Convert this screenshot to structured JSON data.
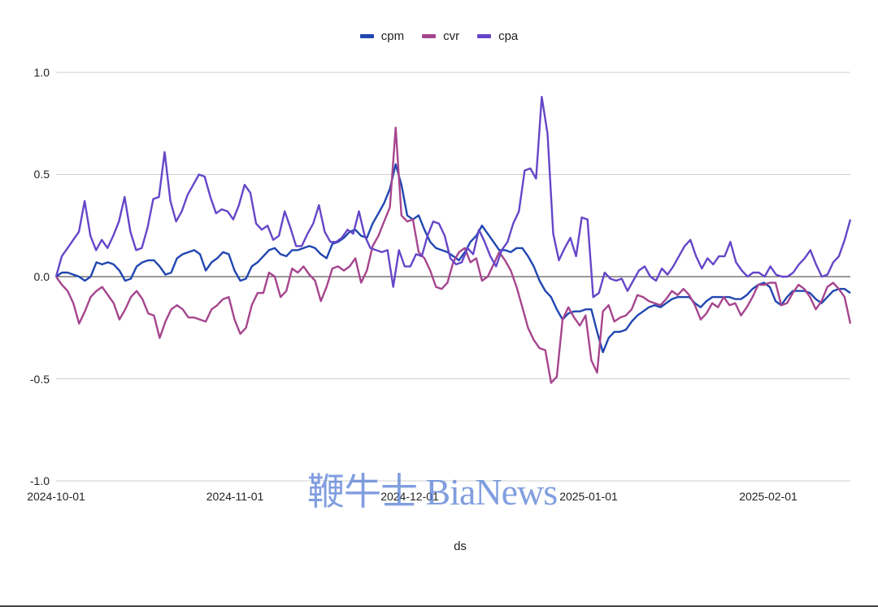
{
  "chart_data": {
    "type": "line",
    "title": "",
    "xlabel": "ds",
    "ylabel": "",
    "ylim": [
      -1.0,
      1.0
    ],
    "yticks": [
      "1.0",
      "0.5",
      "0.0",
      "-0.5",
      "-1.0"
    ],
    "xticks": [
      "2024-10-01",
      "2024-11-01",
      "2024-12-01",
      "2025-01-01",
      "2025-02-01"
    ],
    "x_range": [
      "2024-10-01",
      "2025-02-16"
    ],
    "grid": true,
    "legend_position": "top",
    "series": [
      {
        "name": "cpm",
        "color": "#2046b0",
        "values": [
          0.0,
          0.02,
          0.02,
          0.01,
          0.0,
          -0.02,
          0.0,
          0.07,
          0.06,
          0.07,
          0.06,
          0.03,
          -0.02,
          -0.01,
          0.05,
          0.07,
          0.08,
          0.08,
          0.05,
          0.01,
          0.02,
          0.09,
          0.11,
          0.12,
          0.13,
          0.11,
          0.03,
          0.07,
          0.09,
          0.12,
          0.11,
          0.03,
          -0.02,
          -0.01,
          0.05,
          0.07,
          0.1,
          0.13,
          0.14,
          0.11,
          0.1,
          0.13,
          0.13,
          0.14,
          0.15,
          0.14,
          0.11,
          0.09,
          0.16,
          0.17,
          0.19,
          0.22,
          0.23,
          0.2,
          0.19,
          0.26,
          0.31,
          0.36,
          0.43,
          0.55,
          0.45,
          0.3,
          0.28,
          0.3,
          0.23,
          0.17,
          0.14,
          0.13,
          0.12,
          0.1,
          0.08,
          0.12,
          0.17,
          0.2,
          0.25,
          0.21,
          0.17,
          0.13,
          0.13,
          0.12,
          0.14,
          0.14,
          0.1,
          0.05,
          -0.02,
          -0.07,
          -0.1,
          -0.16,
          -0.21,
          -0.18,
          -0.17,
          -0.17,
          -0.16,
          -0.16,
          -0.27,
          -0.37,
          -0.3,
          -0.27,
          -0.27,
          -0.26,
          -0.22,
          -0.19,
          -0.17,
          -0.15,
          -0.14,
          -0.15,
          -0.13,
          -0.11,
          -0.1,
          -0.1,
          -0.1,
          -0.13,
          -0.15,
          -0.12,
          -0.1,
          -0.1,
          -0.1,
          -0.1,
          -0.11,
          -0.11,
          -0.09,
          -0.06,
          -0.04,
          -0.03,
          -0.05,
          -0.12,
          -0.14,
          -0.1,
          -0.07,
          -0.07,
          -0.07,
          -0.08,
          -0.11,
          -0.13,
          -0.1,
          -0.07,
          -0.06,
          -0.06,
          -0.08
        ]
      },
      {
        "name": "cvr",
        "color": "#a6458e",
        "values": [
          0.0,
          -0.04,
          -0.07,
          -0.13,
          -0.23,
          -0.17,
          -0.1,
          -0.07,
          -0.05,
          -0.09,
          -0.13,
          -0.21,
          -0.16,
          -0.1,
          -0.07,
          -0.11,
          -0.18,
          -0.19,
          -0.3,
          -0.22,
          -0.16,
          -0.14,
          -0.16,
          -0.2,
          -0.2,
          -0.21,
          -0.22,
          -0.16,
          -0.14,
          -0.11,
          -0.1,
          -0.21,
          -0.28,
          -0.25,
          -0.14,
          -0.08,
          -0.08,
          0.02,
          0.0,
          -0.1,
          -0.07,
          0.04,
          0.02,
          0.05,
          0.01,
          -0.02,
          -0.12,
          -0.05,
          0.04,
          0.05,
          0.03,
          0.05,
          0.09,
          -0.03,
          0.03,
          0.15,
          0.2,
          0.27,
          0.34,
          0.73,
          0.3,
          0.27,
          0.28,
          0.12,
          0.09,
          0.03,
          -0.05,
          -0.06,
          -0.03,
          0.07,
          0.12,
          0.14,
          0.07,
          0.09,
          -0.02,
          0.0,
          0.06,
          0.12,
          0.08,
          0.03,
          -0.05,
          -0.15,
          -0.25,
          -0.31,
          -0.35,
          -0.36,
          -0.52,
          -0.49,
          -0.21,
          -0.15,
          -0.2,
          -0.24,
          -0.19,
          -0.41,
          -0.47,
          -0.17,
          -0.14,
          -0.22,
          -0.2,
          -0.19,
          -0.16,
          -0.09,
          -0.1,
          -0.12,
          -0.13,
          -0.14,
          -0.11,
          -0.07,
          -0.09,
          -0.06,
          -0.09,
          -0.14,
          -0.21,
          -0.18,
          -0.13,
          -0.15,
          -0.1,
          -0.14,
          -0.13,
          -0.19,
          -0.15,
          -0.1,
          -0.04,
          -0.04,
          -0.03,
          -0.03,
          -0.14,
          -0.13,
          -0.08,
          -0.04,
          -0.06,
          -0.1,
          -0.16,
          -0.12,
          -0.05,
          -0.03,
          -0.06,
          -0.1,
          -0.23
        ]
      },
      {
        "name": "cpa",
        "color": "#6546c8",
        "values": [
          0.0,
          0.1,
          0.14,
          0.18,
          0.22,
          0.37,
          0.2,
          0.13,
          0.18,
          0.14,
          0.2,
          0.27,
          0.39,
          0.22,
          0.13,
          0.14,
          0.24,
          0.38,
          0.39,
          0.61,
          0.37,
          0.27,
          0.32,
          0.4,
          0.45,
          0.5,
          0.49,
          0.39,
          0.31,
          0.33,
          0.32,
          0.28,
          0.35,
          0.45,
          0.41,
          0.26,
          0.23,
          0.25,
          0.18,
          0.2,
          0.32,
          0.24,
          0.15,
          0.15,
          0.21,
          0.26,
          0.35,
          0.22,
          0.17,
          0.17,
          0.19,
          0.23,
          0.21,
          0.32,
          0.2,
          0.14,
          0.13,
          0.12,
          0.13,
          -0.05,
          0.13,
          0.05,
          0.05,
          0.11,
          0.1,
          0.2,
          0.27,
          0.26,
          0.2,
          0.09,
          0.06,
          0.07,
          0.14,
          0.11,
          0.23,
          0.17,
          0.1,
          0.05,
          0.13,
          0.17,
          0.26,
          0.32,
          0.52,
          0.53,
          0.48,
          0.88,
          0.7,
          0.21,
          0.08,
          0.14,
          0.19,
          0.1,
          0.29,
          0.28,
          -0.1,
          -0.08,
          0.02,
          -0.01,
          -0.02,
          -0.01,
          -0.07,
          -0.02,
          0.03,
          0.05,
          0.0,
          -0.02,
          0.04,
          0.01,
          0.05,
          0.1,
          0.15,
          0.18,
          0.1,
          0.04,
          0.09,
          0.06,
          0.1,
          0.1,
          0.17,
          0.07,
          0.03,
          0.0,
          0.02,
          0.02,
          0.0,
          0.05,
          0.01,
          0.0,
          0.0,
          0.02,
          0.06,
          0.09,
          0.13,
          0.06,
          0.0,
          0.01,
          0.07,
          0.1,
          0.18,
          0.28
        ]
      }
    ]
  },
  "legend": [
    {
      "label": "cpm",
      "color": "#2046b0"
    },
    {
      "label": "cvr",
      "color": "#a6458e"
    },
    {
      "label": "cpa",
      "color": "#6546c8"
    }
  ],
  "axes": {
    "y_ticks": [
      "1.0",
      "0.5",
      "0.0",
      "-0.5",
      "-1.0"
    ],
    "x_ticks": [
      "2024-10-01",
      "2024-11-01",
      "2024-12-01",
      "2025-01-01",
      "2025-02-01"
    ],
    "x_title": "ds"
  },
  "watermark": "鞭牛士 BiaNews"
}
